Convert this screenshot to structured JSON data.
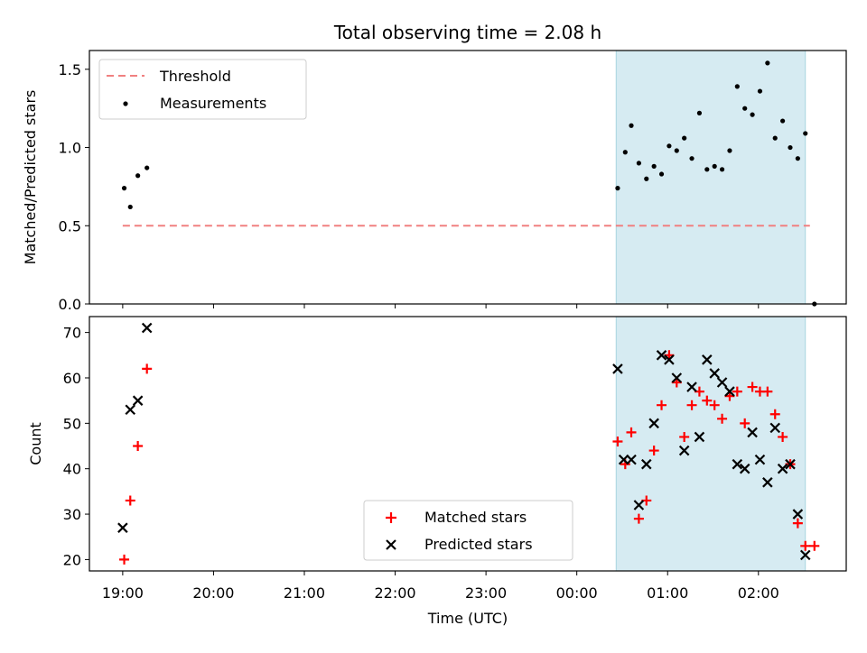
{
  "title": "Total observing time = 2.08 h",
  "xlabel": "Time (UTC)",
  "x_tick_labels": [
    "19:00",
    "20:00",
    "21:00",
    "22:00",
    "23:00",
    "00:00",
    "01:00",
    "02:00"
  ],
  "colors": {
    "threshold": "#f08080",
    "measurement": "#000000",
    "matched": "#ff0000",
    "predicted": "#000000",
    "shade": "#add8e6"
  },
  "chart_data": [
    {
      "type": "scatter",
      "ylabel": "Matched/Predicted stars",
      "xlim": [
        "18:38",
        "02:58"
      ],
      "ylim": [
        0,
        1.62
      ],
      "y_ticks": [
        "0.0",
        "0.5",
        "1.0",
        "1.5"
      ],
      "shaded_span": [
        "00:26",
        "02:31"
      ],
      "legend_position": "upper left",
      "legend": [
        "Threshold",
        "Measurements"
      ],
      "threshold": {
        "name": "Threshold",
        "y": 0.5,
        "x": [
          "19:00",
          "02:34"
        ]
      },
      "series": [
        {
          "name": "Measurements",
          "x": [
            "19:01",
            "19:05",
            "19:10",
            "19:16",
            "00:27",
            "00:32",
            "00:36",
            "00:41",
            "00:46",
            "00:51",
            "00:56",
            "01:01",
            "01:06",
            "01:11",
            "01:16",
            "01:21",
            "01:26",
            "01:31",
            "01:36",
            "01:41",
            "01:46",
            "01:51",
            "01:56",
            "02:01",
            "02:06",
            "02:11",
            "02:16",
            "02:21",
            "02:26",
            "02:31",
            "02:37"
          ],
          "y": [
            0.74,
            0.62,
            0.82,
            0.87,
            0.74,
            0.97,
            1.14,
            0.9,
            0.8,
            0.88,
            0.83,
            1.01,
            0.98,
            1.06,
            0.93,
            1.22,
            0.86,
            0.88,
            0.86,
            0.98,
            1.39,
            1.25,
            1.21,
            1.36,
            1.54,
            1.06,
            1.17,
            1.0,
            0.93,
            1.09,
            0.0
          ]
        }
      ]
    },
    {
      "type": "scatter",
      "ylabel": "Count",
      "xlim": [
        "18:38",
        "02:58"
      ],
      "ylim": [
        17.5,
        73.5
      ],
      "y_ticks": [
        "20",
        "30",
        "40",
        "50",
        "60",
        "70"
      ],
      "shaded_span": [
        "00:26",
        "02:31"
      ],
      "legend_position": "lower center",
      "legend": [
        "Matched stars",
        "Predicted stars"
      ],
      "series": [
        {
          "name": "Matched stars",
          "x": [
            "19:01",
            "19:05",
            "19:10",
            "19:16",
            "00:27",
            "00:32",
            "00:36",
            "00:41",
            "00:46",
            "00:51",
            "00:56",
            "01:01",
            "01:06",
            "01:11",
            "01:16",
            "01:21",
            "01:26",
            "01:31",
            "01:36",
            "01:41",
            "01:46",
            "01:51",
            "01:56",
            "02:01",
            "02:06",
            "02:11",
            "02:16",
            "02:21",
            "02:26",
            "02:31",
            "02:37"
          ],
          "y": [
            20,
            33,
            45,
            62,
            46,
            41,
            48,
            29,
            33,
            44,
            54,
            65,
            59,
            47,
            54,
            57,
            55,
            54,
            51,
            56,
            57,
            50,
            58,
            57,
            57,
            52,
            47,
            41,
            28,
            23,
            23
          ]
        },
        {
          "name": "Predicted stars",
          "x": [
            "19:00",
            "19:05",
            "19:10",
            "19:16",
            "00:27",
            "00:31",
            "00:36",
            "00:41",
            "00:46",
            "00:51",
            "00:56",
            "01:01",
            "01:06",
            "01:11",
            "01:16",
            "01:21",
            "01:26",
            "01:31",
            "01:36",
            "01:41",
            "01:46",
            "01:51",
            "01:56",
            "02:01",
            "02:06",
            "02:11",
            "02:16",
            "02:21",
            "02:26",
            "02:31"
          ],
          "y": [
            27,
            53,
            55,
            71,
            62,
            42,
            42,
            32,
            41,
            50,
            65,
            64,
            60,
            44,
            58,
            47,
            64,
            61,
            59,
            57,
            41,
            40,
            48,
            42,
            37,
            49,
            40,
            41,
            30,
            21
          ]
        }
      ]
    }
  ]
}
